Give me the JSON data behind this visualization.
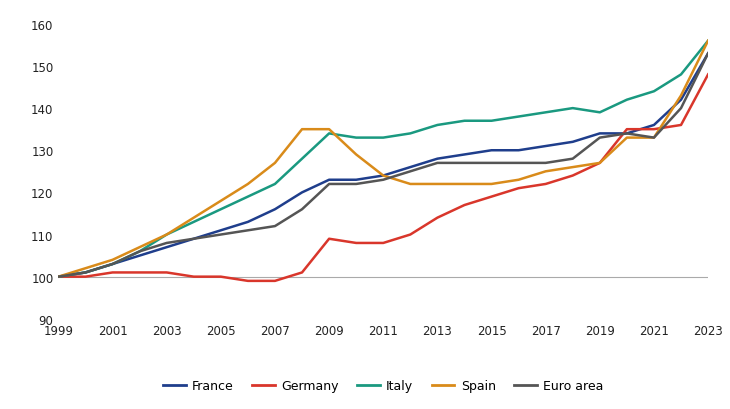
{
  "years": [
    1999,
    2000,
    2001,
    2002,
    2003,
    2004,
    2005,
    2006,
    2007,
    2008,
    2009,
    2010,
    2011,
    2012,
    2013,
    2014,
    2015,
    2016,
    2017,
    2018,
    2019,
    2020,
    2021,
    2022,
    2023
  ],
  "France": [
    100,
    101,
    103,
    105,
    107,
    109,
    111,
    113,
    116,
    120,
    123,
    123,
    124,
    126,
    128,
    129,
    130,
    130,
    131,
    132,
    134,
    134,
    136,
    142,
    153
  ],
  "Germany": [
    100,
    100,
    101,
    101,
    101,
    100,
    100,
    99,
    99,
    101,
    109,
    108,
    108,
    110,
    114,
    117,
    119,
    121,
    122,
    124,
    127,
    135,
    135,
    136,
    148
  ],
  "Italy": [
    100,
    101,
    103,
    106,
    110,
    113,
    116,
    119,
    122,
    128,
    134,
    133,
    133,
    134,
    136,
    137,
    137,
    138,
    139,
    140,
    139,
    142,
    144,
    148,
    156
  ],
  "Spain": [
    100,
    102,
    104,
    107,
    110,
    114,
    118,
    122,
    127,
    135,
    135,
    129,
    124,
    122,
    122,
    122,
    122,
    123,
    125,
    126,
    127,
    133,
    133,
    143,
    156
  ],
  "Euro area": [
    100,
    101,
    103,
    106,
    108,
    109,
    110,
    111,
    112,
    116,
    122,
    122,
    123,
    125,
    127,
    127,
    127,
    127,
    127,
    128,
    133,
    134,
    133,
    140,
    153
  ],
  "colors": {
    "France": "#1F3E8C",
    "Germany": "#D9362B",
    "Italy": "#1A9980",
    "Spain": "#D98B1A",
    "Euro area": "#555555"
  },
  "ylim": [
    90,
    162
  ],
  "yticks": [
    90,
    100,
    110,
    120,
    130,
    140,
    150,
    160
  ],
  "hline_y": 100,
  "background_color": "#ffffff"
}
